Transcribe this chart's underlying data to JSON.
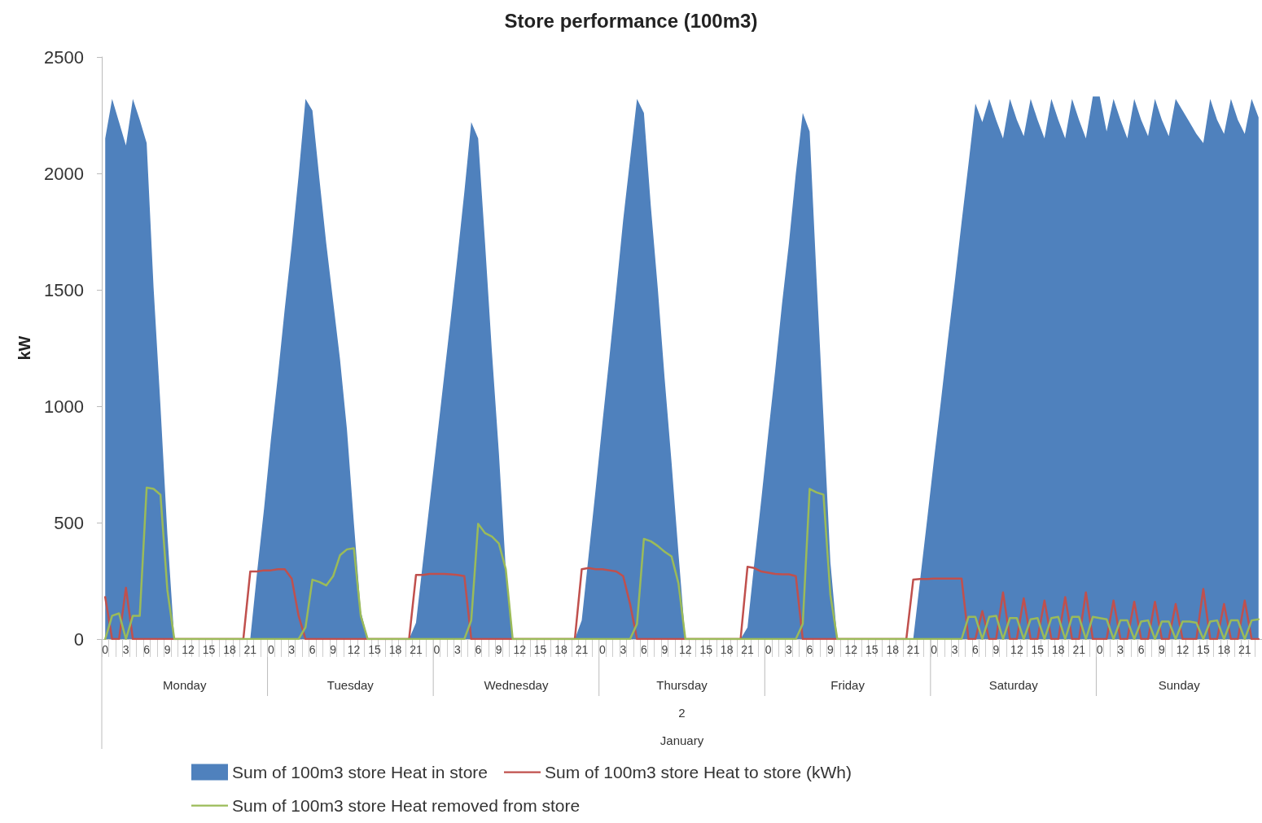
{
  "chart_data": {
    "type": "line",
    "title": "Store performance (100m3)",
    "ylabel": "kW",
    "categories": [
      "0",
      null,
      null,
      "3",
      null,
      null,
      "6",
      null,
      null,
      "9",
      null,
      null,
      "12",
      null,
      null,
      "15",
      null,
      null,
      "18",
      null,
      null,
      "21",
      null,
      null,
      "0",
      null,
      null,
      "3",
      null,
      null,
      "6",
      null,
      null,
      "9",
      null,
      null,
      "12",
      null,
      null,
      "15",
      null,
      null,
      "18",
      null,
      null,
      "21",
      null,
      null,
      "0",
      null,
      null,
      "3",
      null,
      null,
      "6",
      null,
      null,
      "9",
      null,
      null,
      "12",
      null,
      null,
      "15",
      null,
      null,
      "18",
      null,
      null,
      "21",
      null,
      null,
      "0",
      null,
      null,
      "3",
      null,
      null,
      "6",
      null,
      null,
      "9",
      null,
      null,
      "12",
      null,
      null,
      "15",
      null,
      null,
      "18",
      null,
      null,
      "21",
      null,
      null,
      "0",
      null,
      null,
      "3",
      null,
      null,
      "6",
      null,
      null,
      "9",
      null,
      null,
      "12",
      null,
      null,
      "15",
      null,
      null,
      "18",
      null,
      null,
      "21",
      null,
      null,
      "0",
      null,
      null,
      "3",
      null,
      null,
      "6",
      null,
      null,
      "9",
      null,
      null,
      "12",
      null,
      null,
      "15",
      null,
      null,
      "18",
      null,
      null,
      "21",
      null,
      null,
      "0",
      null,
      null,
      "3",
      null,
      null,
      "6",
      null,
      null,
      "9",
      null,
      null,
      "12",
      null,
      null,
      "15",
      null,
      null,
      "18",
      null,
      null,
      "21",
      null,
      null
    ],
    "series": [
      {
        "name": "Sum of 100m3 store Heat in store",
        "type": "area",
        "color": "#4f81bd",
        "values": [
          2150,
          2320,
          2220,
          2120,
          2320,
          2230,
          2130,
          1510,
          1000,
          450,
          0,
          0,
          0,
          0,
          0,
          0,
          0,
          0,
          0,
          0,
          0,
          0,
          290,
          560,
          860,
          1130,
          1420,
          1690,
          1990,
          2320,
          2270,
          1980,
          1700,
          1450,
          1200,
          900,
          500,
          120,
          0,
          0,
          0,
          0,
          0,
          0,
          0,
          70,
          330,
          590,
          850,
          1110,
          1370,
          1640,
          1920,
          2220,
          2150,
          1700,
          1230,
          800,
          300,
          0,
          0,
          0,
          0,
          0,
          0,
          0,
          0,
          0,
          0,
          80,
          360,
          640,
          930,
          1210,
          1500,
          1800,
          2060,
          2320,
          2260,
          1860,
          1510,
          1120,
          760,
          370,
          0,
          0,
          0,
          0,
          0,
          0,
          0,
          0,
          0,
          50,
          330,
          600,
          880,
          1150,
          1440,
          1700,
          2000,
          2260,
          2180,
          1550,
          950,
          330,
          0,
          0,
          0,
          0,
          0,
          0,
          0,
          0,
          0,
          0,
          0,
          0,
          255,
          510,
          770,
          1020,
          1280,
          1530,
          1790,
          2040,
          2300,
          2220,
          2320,
          2230,
          2150,
          2320,
          2230,
          2160,
          2320,
          2230,
          2150,
          2320,
          2230,
          2150,
          2320,
          2230,
          2150,
          2330,
          2330,
          2180,
          2320,
          2230,
          2150,
          2320,
          2230,
          2160,
          2320,
          2230,
          2160,
          2320,
          2270,
          2220,
          2170,
          2130,
          2320,
          2230,
          2170,
          2320,
          2230,
          2170,
          2320,
          2240
        ]
      },
      {
        "name": "Sum of 100m3 store Heat to store (kWh)",
        "type": "line",
        "color": "#c0504d",
        "values": [
          180,
          0,
          0,
          220,
          0,
          0,
          0,
          0,
          0,
          0,
          0,
          0,
          0,
          0,
          0,
          0,
          0,
          0,
          0,
          0,
          0,
          290,
          290,
          295,
          295,
          300,
          300,
          260,
          100,
          0,
          0,
          0,
          0,
          0,
          0,
          0,
          0,
          0,
          0,
          0,
          0,
          0,
          0,
          0,
          0,
          275,
          275,
          280,
          280,
          280,
          278,
          275,
          270,
          0,
          0,
          0,
          0,
          0,
          0,
          0,
          0,
          0,
          0,
          0,
          0,
          0,
          0,
          0,
          0,
          300,
          305,
          300,
          300,
          295,
          290,
          270,
          150,
          0,
          0,
          0,
          0,
          0,
          0,
          0,
          0,
          0,
          0,
          0,
          0,
          0,
          0,
          0,
          0,
          310,
          305,
          290,
          285,
          280,
          278,
          278,
          270,
          0,
          0,
          0,
          0,
          0,
          0,
          0,
          0,
          0,
          0,
          0,
          0,
          0,
          0,
          0,
          0,
          255,
          258,
          258,
          260,
          260,
          260,
          260,
          260,
          0,
          0,
          120,
          0,
          0,
          200,
          0,
          0,
          175,
          0,
          0,
          165,
          0,
          0,
          180,
          0,
          0,
          200,
          0,
          0,
          0,
          165,
          0,
          0,
          160,
          0,
          0,
          160,
          0,
          0,
          150,
          0,
          0,
          0,
          215,
          0,
          0,
          150,
          0,
          0,
          165,
          0,
          0
        ]
      },
      {
        "name": "Sum of 100m3 store Heat removed from store",
        "type": "line",
        "color": "#9bbb59",
        "values": [
          0,
          100,
          110,
          0,
          100,
          100,
          650,
          645,
          620,
          210,
          0,
          0,
          0,
          0,
          0,
          0,
          0,
          0,
          0,
          0,
          0,
          0,
          0,
          0,
          0,
          0,
          0,
          0,
          0,
          50,
          255,
          245,
          230,
          270,
          360,
          385,
          390,
          100,
          0,
          0,
          0,
          0,
          0,
          0,
          0,
          0,
          0,
          0,
          0,
          0,
          0,
          0,
          0,
          80,
          495,
          455,
          440,
          410,
          300,
          0,
          0,
          0,
          0,
          0,
          0,
          0,
          0,
          0,
          0,
          0,
          0,
          0,
          0,
          0,
          0,
          0,
          0,
          65,
          430,
          420,
          400,
          375,
          355,
          240,
          0,
          0,
          0,
          0,
          0,
          0,
          0,
          0,
          0,
          0,
          0,
          0,
          0,
          0,
          0,
          0,
          0,
          65,
          645,
          630,
          620,
          190,
          0,
          0,
          0,
          0,
          0,
          0,
          0,
          0,
          0,
          0,
          0,
          0,
          0,
          0,
          0,
          0,
          0,
          0,
          0,
          95,
          95,
          0,
          95,
          100,
          0,
          90,
          90,
          0,
          85,
          90,
          0,
          90,
          95,
          0,
          95,
          95,
          0,
          95,
          90,
          85,
          0,
          80,
          80,
          0,
          75,
          80,
          0,
          75,
          75,
          0,
          75,
          75,
          70,
          0,
          75,
          80,
          0,
          80,
          80,
          0,
          80,
          85
        ]
      }
    ],
    "ylim": [
      0,
      2500
    ],
    "yticks": [
      0,
      500,
      1000,
      1500,
      2000,
      2500
    ],
    "grid": false,
    "legend": "bottom",
    "marker": "none",
    "line_style": "solid",
    "annotations": [
      "Monday",
      "Tuesday",
      "Wednesday",
      "Thursday",
      "Friday",
      "Saturday",
      "Sunday",
      "2",
      "January"
    ]
  }
}
